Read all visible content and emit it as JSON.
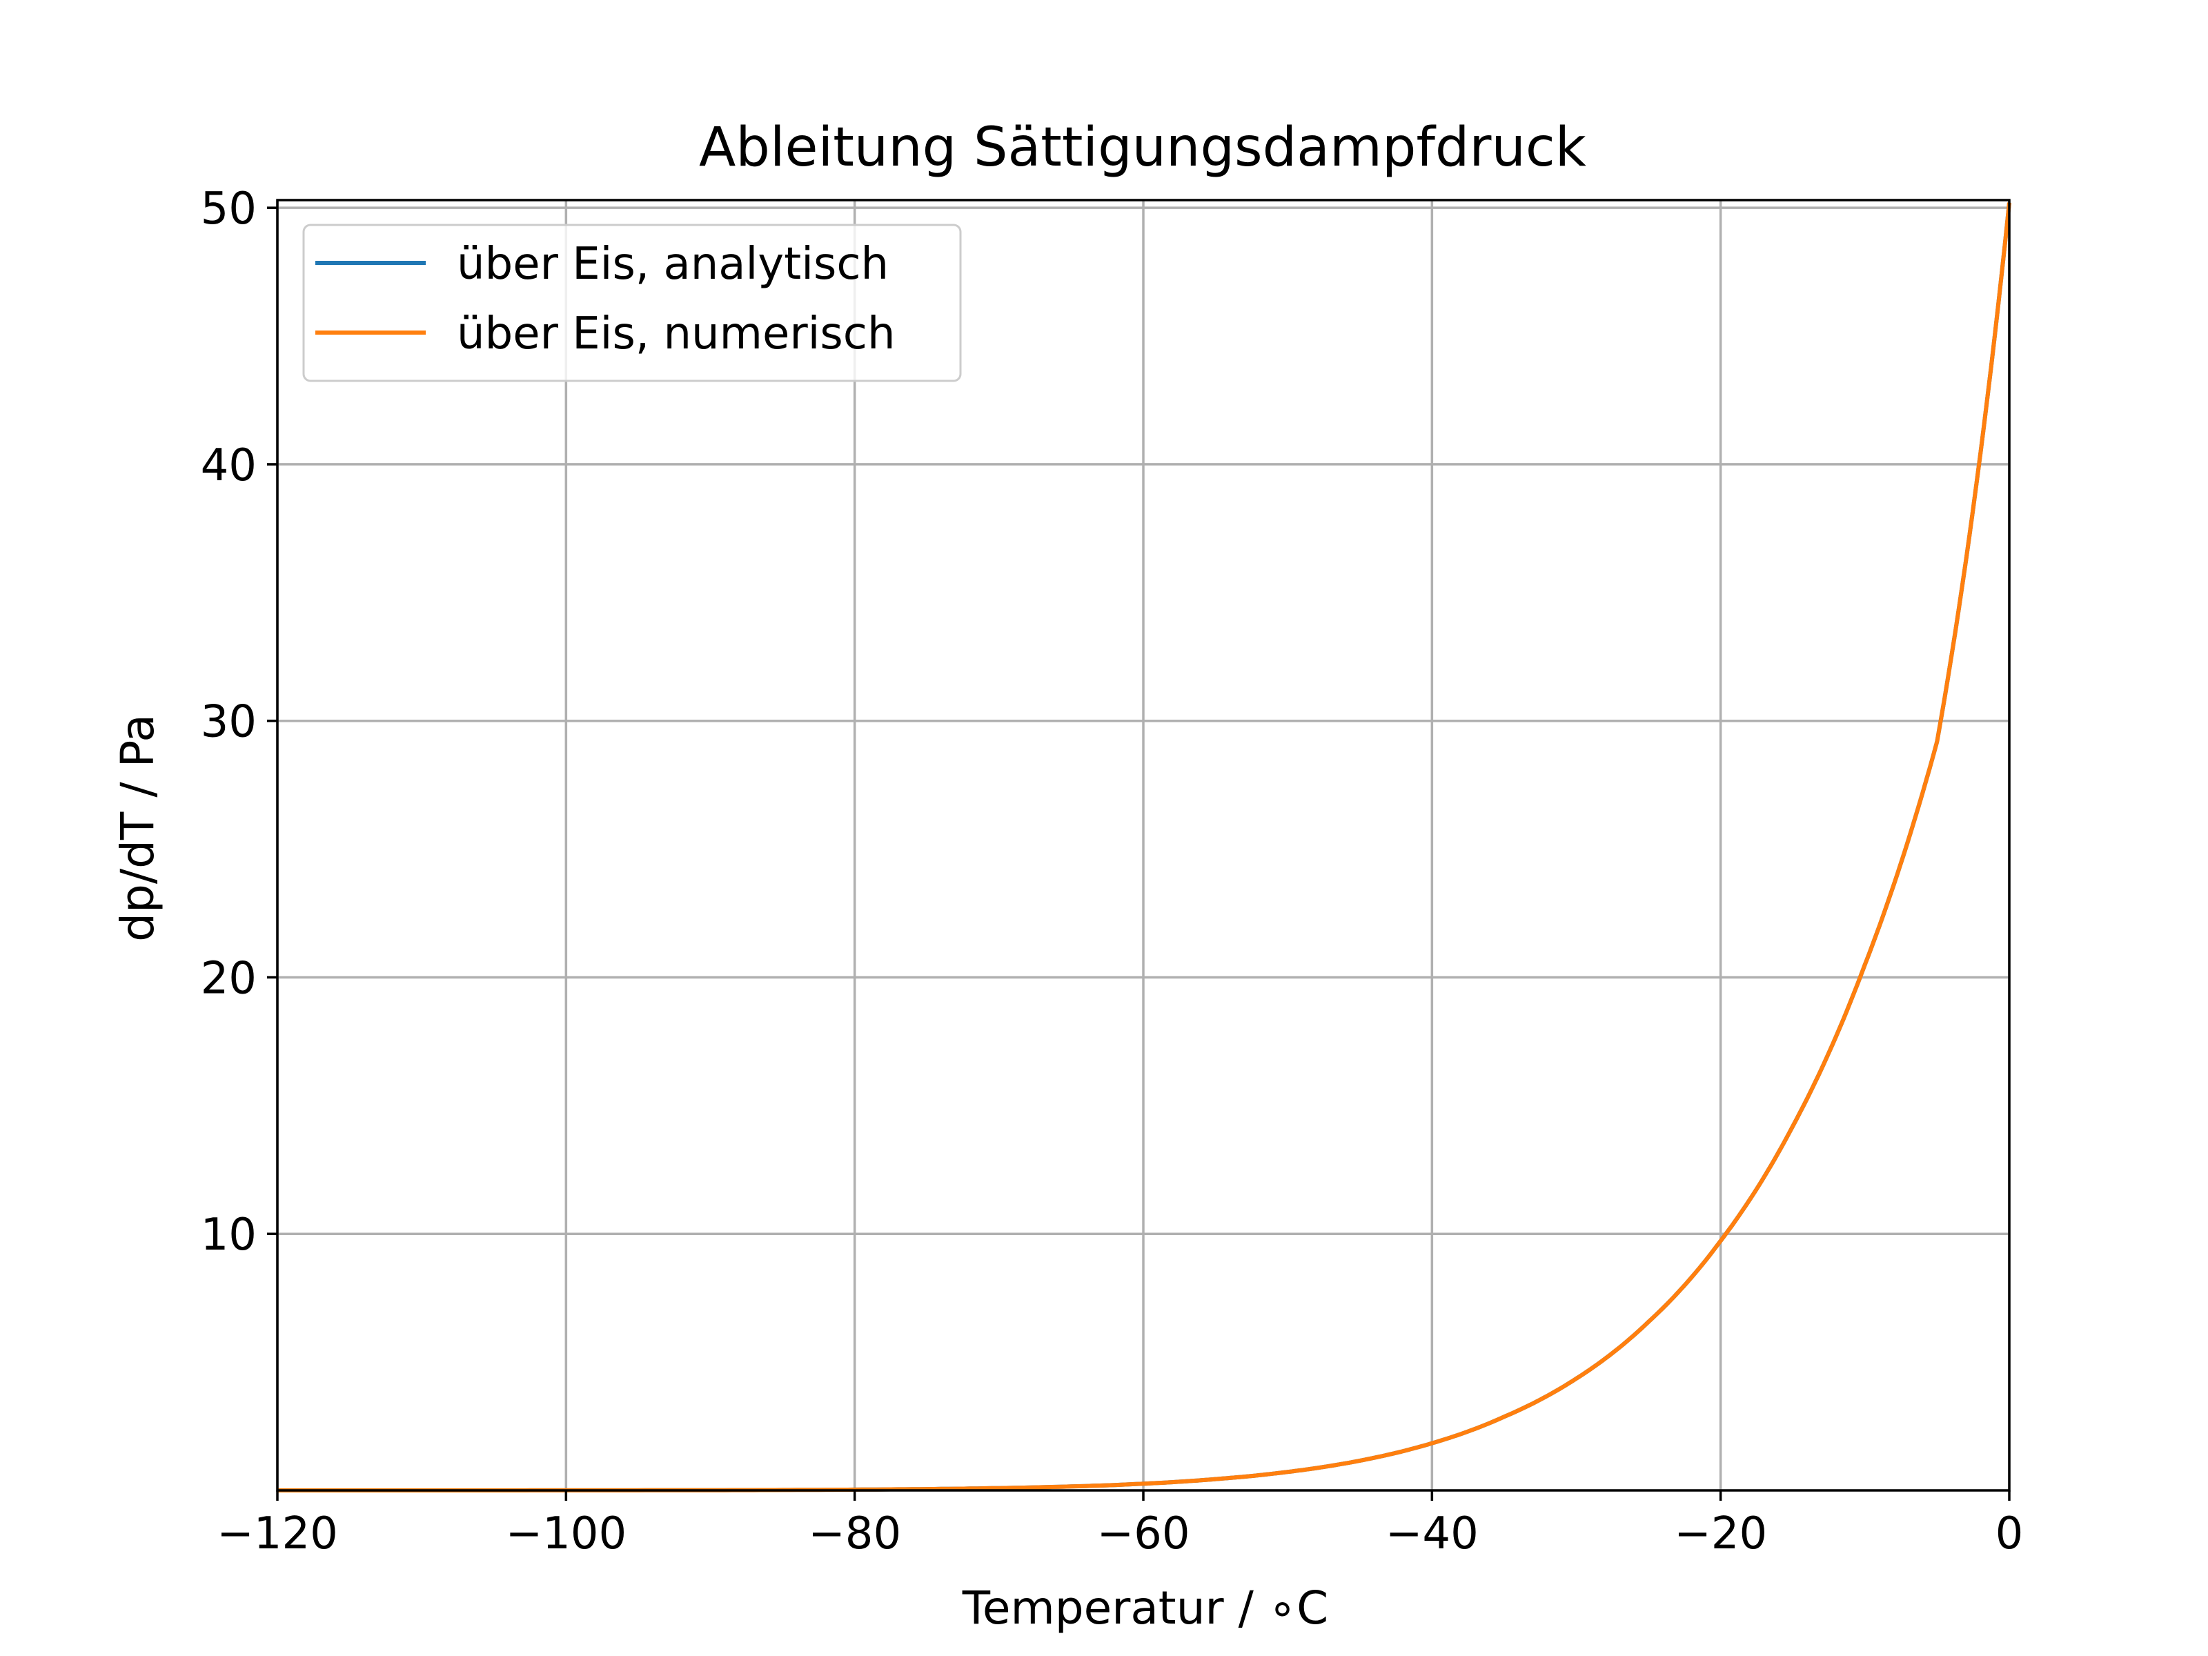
{
  "chart_data": {
    "type": "line",
    "title": "Ableitung Sättigungsdampfdruck",
    "xlabel": "Temperatur / $^\\circ$C",
    "xlabel_display": "Temperatur / ∘C",
    "ylabel": "dp/dT / Pa",
    "xlim": [
      -120,
      0
    ],
    "ylim": [
      0,
      50.3
    ],
    "xticks": [
      -120,
      -100,
      -80,
      -60,
      -40,
      -20,
      0
    ],
    "xtick_labels": [
      "−120",
      "−100",
      "−80",
      "−60",
      "−40",
      "−20",
      "0"
    ],
    "yticks": [
      10,
      20,
      30,
      40,
      50
    ],
    "ytick_labels": [
      "10",
      "20",
      "30",
      "40",
      "50"
    ],
    "grid": true,
    "legend_position": "top-left",
    "x": [
      -120,
      -110,
      -100,
      -90,
      -80,
      -70,
      -60,
      -55,
      -50,
      -45,
      -40,
      -35,
      -30,
      -25,
      -20,
      -15,
      -10,
      -5,
      0
    ],
    "series": [
      {
        "name": "über Eis, analytisch",
        "color": "#1f77b4",
        "values": [
          0.0001,
          0.0005,
          0.002,
          0.008,
          0.03,
          0.09,
          0.26,
          0.44,
          0.72,
          1.16,
          1.84,
          2.87,
          4.36,
          6.57,
          9.73,
          14.2,
          20.5,
          29.2,
          50.2
        ]
      },
      {
        "name": "über Eis, numerisch",
        "color": "#ff7f0e",
        "values": [
          0.0001,
          0.0005,
          0.002,
          0.008,
          0.03,
          0.09,
          0.26,
          0.44,
          0.72,
          1.16,
          1.84,
          2.87,
          4.36,
          6.57,
          9.73,
          14.2,
          20.5,
          29.2,
          50.2
        ]
      }
    ]
  }
}
